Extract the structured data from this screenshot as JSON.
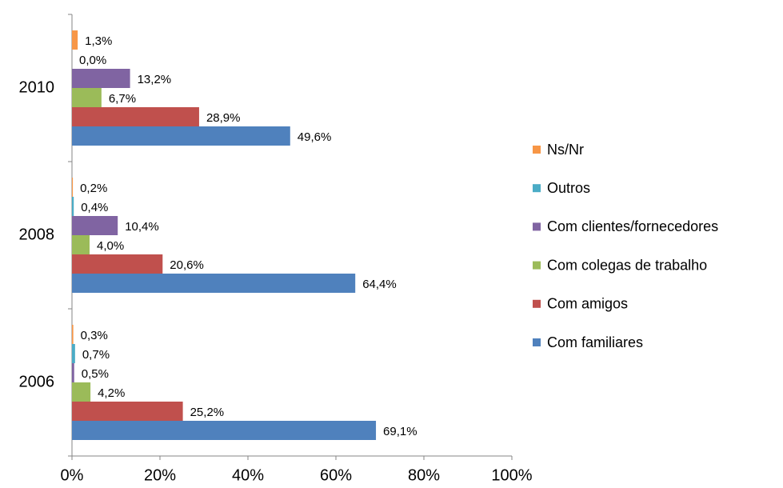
{
  "chart_data": {
    "type": "barh",
    "categories": [
      "2006",
      "2008",
      "2010"
    ],
    "series": [
      {
        "name": "Com familiares",
        "color": "#4f81bd",
        "values": [
          69.1,
          64.4,
          49.6
        ],
        "value_labels": [
          "69,1%",
          "64,4%",
          "49,6%"
        ]
      },
      {
        "name": "Com amigos",
        "color": "#c0504d",
        "values": [
          25.2,
          20.6,
          28.9
        ],
        "value_labels": [
          "25,2%",
          "20,6%",
          "28,9%"
        ]
      },
      {
        "name": "Com colegas de trabalho",
        "color": "#9bbb59",
        "values": [
          4.2,
          4.0,
          6.7
        ],
        "value_labels": [
          "4,2%",
          "4,0%",
          "6,7%"
        ]
      },
      {
        "name": "Com clientes/fornecedores",
        "color": "#8064a2",
        "values": [
          0.5,
          10.4,
          13.2
        ],
        "value_labels": [
          "0,5%",
          "10,4%",
          "13,2%"
        ]
      },
      {
        "name": "Outros",
        "color": "#4bacc6",
        "values": [
          0.7,
          0.4,
          0.0
        ],
        "value_labels": [
          "0,7%",
          "0,4%",
          "0,0%"
        ]
      },
      {
        "name": "Ns/Nr",
        "color": "#f79646",
        "values": [
          0.3,
          0.2,
          1.3
        ],
        "value_labels": [
          "0,3%",
          "0,2%",
          "1,3%"
        ]
      }
    ],
    "xlim": [
      0,
      100
    ],
    "xticks": [
      {
        "value": 0,
        "label": "0%"
      },
      {
        "value": 20,
        "label": "20%"
      },
      {
        "value": 40,
        "label": "40%"
      },
      {
        "value": 60,
        "label": "60%"
      },
      {
        "value": 80,
        "label": "80%"
      },
      {
        "value": 100,
        "label": "100%"
      }
    ],
    "legend": "right"
  }
}
